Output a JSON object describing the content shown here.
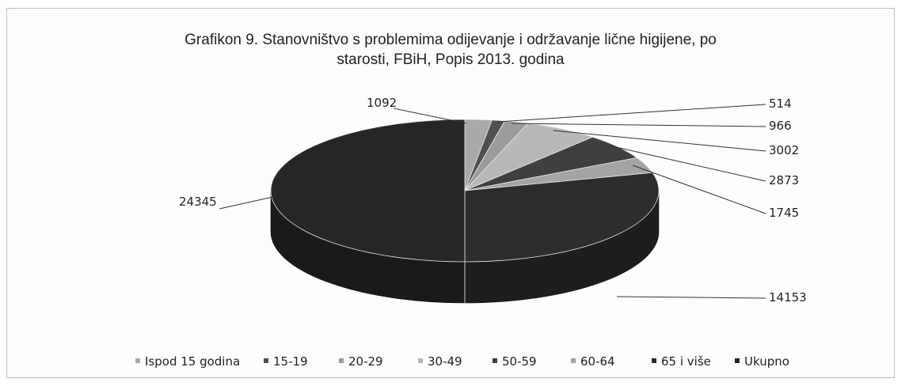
{
  "chart_data": {
    "type": "pie",
    "title_lines": [
      "Grafikon 9. Stanovništvo s problemima odijevanje i održavanje lične higijene, po",
      "starosti, FBiH, Popis 2013. godina"
    ],
    "categories": [
      "Ispod 15 godina",
      "15-19",
      "20-29",
      "30-49",
      "50-59",
      "60-64",
      "65 i više",
      "Ukupno"
    ],
    "values": [
      1092,
      514,
      966,
      3002,
      2873,
      1745,
      14153,
      24345
    ],
    "colors": [
      "#a9a9a9",
      "#4f4f4f",
      "#9b9b9b",
      "#b8b8b8",
      "#3f3f3f",
      "#a4a4a4",
      "#2d2d2d",
      "#262626"
    ],
    "side_colors": [
      "#8a8a8a",
      "#3a3a3a",
      "#7d7d7d",
      "#999999",
      "#2e2e2e",
      "#868686",
      "#1e1e1e",
      "#1a1a1a"
    ],
    "style": "3d-pie",
    "legend_position": "bottom"
  }
}
